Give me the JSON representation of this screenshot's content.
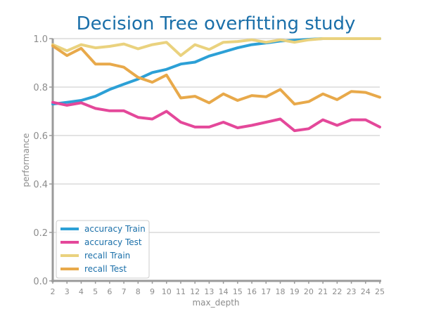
{
  "chart_data": {
    "type": "line",
    "title": "Decision Tree overfitting study",
    "xlabel": "max_depth",
    "ylabel": "performance",
    "x": [
      2,
      3,
      4,
      5,
      6,
      7,
      8,
      9,
      10,
      11,
      12,
      13,
      14,
      15,
      16,
      17,
      18,
      19,
      20,
      21,
      22,
      23,
      24,
      25
    ],
    "xlim": [
      2,
      25
    ],
    "ylim": [
      0,
      1
    ],
    "yticks": [
      "0.0",
      "0.2",
      "0.4",
      "0.6",
      "0.8",
      "1.0"
    ],
    "grid": "horizontal",
    "legend_position": "bottom-left",
    "series": [
      {
        "name": "accuracy Train",
        "color": "#2ca0d6",
        "values": [
          0.73,
          0.737,
          0.745,
          0.762,
          0.79,
          0.812,
          0.833,
          0.86,
          0.873,
          0.895,
          0.903,
          0.928,
          0.945,
          0.962,
          0.975,
          0.982,
          0.99,
          0.993,
          0.997,
          1.0,
          1.0,
          1.0,
          1.0,
          1.0
        ]
      },
      {
        "name": "accuracy Test",
        "color": "#e4489a",
        "values": [
          0.737,
          0.725,
          0.735,
          0.712,
          0.702,
          0.702,
          0.675,
          0.668,
          0.7,
          0.655,
          0.635,
          0.635,
          0.655,
          0.632,
          0.642,
          0.655,
          0.668,
          0.62,
          0.628,
          0.665,
          0.642,
          0.665,
          0.665,
          0.635
        ]
      },
      {
        "name": "recall Train",
        "color": "#ead27e",
        "values": [
          0.975,
          0.95,
          0.975,
          0.962,
          0.968,
          0.978,
          0.958,
          0.975,
          0.985,
          0.93,
          0.975,
          0.955,
          0.985,
          0.988,
          0.995,
          0.985,
          0.995,
          0.985,
          0.995,
          1.0,
          1.0,
          1.0,
          1.0,
          1.0
        ]
      },
      {
        "name": "recall Test",
        "color": "#e8a94a",
        "values": [
          0.97,
          0.93,
          0.96,
          0.895,
          0.895,
          0.882,
          0.84,
          0.82,
          0.85,
          0.755,
          0.762,
          0.735,
          0.772,
          0.745,
          0.765,
          0.76,
          0.79,
          0.73,
          0.74,
          0.772,
          0.748,
          0.782,
          0.778,
          0.758
        ]
      }
    ]
  },
  "colors": {
    "title": "#1a6fa9",
    "legend_text": "#1a6fa9",
    "axis": "#9a9a9a",
    "grid": "#d2d2d2"
  }
}
